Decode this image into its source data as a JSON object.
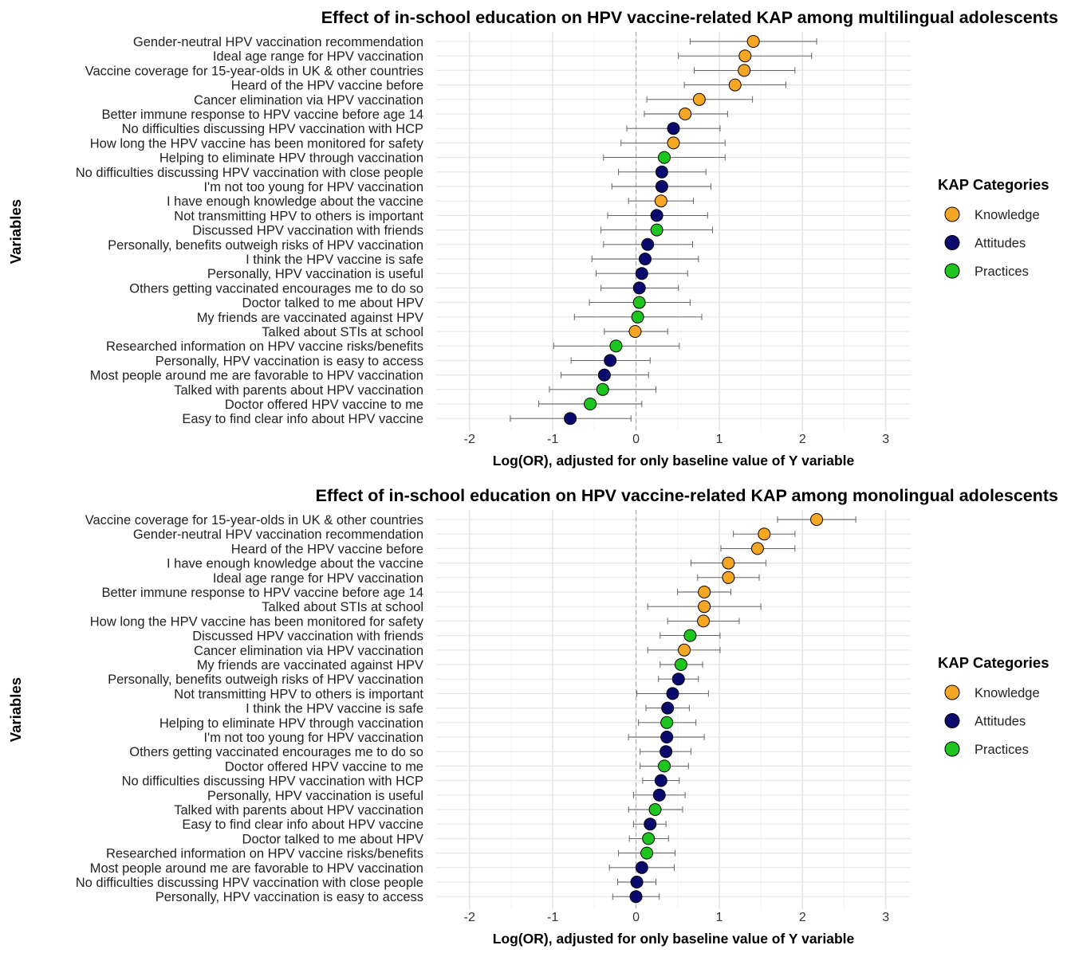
{
  "legend": {
    "title": "KAP Categories",
    "items": [
      {
        "label": "Knowledge",
        "color": "#F5A623"
      },
      {
        "label": "Attitudes",
        "color": "#0A0A6E"
      },
      {
        "label": "Practices",
        "color": "#1EC51E"
      }
    ]
  },
  "chart_data": [
    {
      "type": "scatter",
      "title": "Effect of in-school education on HPV vaccine-related KAP among multilingual adolescents",
      "xlabel": "Log(OR), adjusted for only baseline value of Y variable",
      "ylabel": "Variables",
      "xlim": [
        -2.4,
        3.3
      ],
      "xticks": [
        "-2",
        "-1",
        "0",
        "1",
        "2",
        "3"
      ],
      "reference_line": 0,
      "grid": true,
      "legend_position": "right",
      "points": [
        {
          "label": "Gender-neutral HPV vaccination recommendation",
          "category": "Knowledge",
          "estimate": 1.41,
          "low": 0.65,
          "high": 2.17
        },
        {
          "label": "Ideal age range for HPV vaccination",
          "category": "Knowledge",
          "estimate": 1.31,
          "low": 0.51,
          "high": 2.11
        },
        {
          "label": "Vaccine coverage for 15-year-olds in UK & other countries",
          "category": "Knowledge",
          "estimate": 1.3,
          "low": 0.7,
          "high": 1.91
        },
        {
          "label": "Heard of the HPV vaccine before",
          "category": "Knowledge",
          "estimate": 1.19,
          "low": 0.58,
          "high": 1.8
        },
        {
          "label": "Cancer elimination via HPV vaccination",
          "category": "Knowledge",
          "estimate": 0.76,
          "low": 0.13,
          "high": 1.4
        },
        {
          "label": "Better immune response to HPV vaccine before age 14",
          "category": "Knowledge",
          "estimate": 0.59,
          "low": 0.1,
          "high": 1.1
        },
        {
          "label": "No difficulties discussing HPV vaccination with HCP",
          "category": "Attitudes",
          "estimate": 0.45,
          "low": -0.11,
          "high": 1.01
        },
        {
          "label": "How long the HPV vaccine has been monitored for safety",
          "category": "Knowledge",
          "estimate": 0.45,
          "low": -0.18,
          "high": 1.07
        },
        {
          "label": "Helping to eliminate HPV through vaccination",
          "category": "Practices",
          "estimate": 0.34,
          "low": -0.39,
          "high": 1.07
        },
        {
          "label": "No difficulties discussing HPV vaccination with close people",
          "category": "Attitudes",
          "estimate": 0.31,
          "low": -0.21,
          "high": 0.84
        },
        {
          "label": "I'm not too young for HPV vaccination",
          "category": "Attitudes",
          "estimate": 0.31,
          "low": -0.29,
          "high": 0.9
        },
        {
          "label": "I have enough knowledge about the vaccine",
          "category": "Knowledge",
          "estimate": 0.3,
          "low": -0.09,
          "high": 0.69
        },
        {
          "label": "Not transmitting HPV to others is important",
          "category": "Attitudes",
          "estimate": 0.25,
          "low": -0.34,
          "high": 0.86
        },
        {
          "label": "Discussed HPV vaccination with friends",
          "category": "Practices",
          "estimate": 0.25,
          "low": -0.42,
          "high": 0.92
        },
        {
          "label": "Personally, benefits outweigh risks of HPV vaccination",
          "category": "Attitudes",
          "estimate": 0.14,
          "low": -0.39,
          "high": 0.68
        },
        {
          "label": "I think the HPV vaccine is safe",
          "category": "Attitudes",
          "estimate": 0.11,
          "low": -0.53,
          "high": 0.75
        },
        {
          "label": "Personally, HPV vaccination is useful",
          "category": "Attitudes",
          "estimate": 0.07,
          "low": -0.48,
          "high": 0.62
        },
        {
          "label": "Others getting vaccinated encourages me to do so",
          "category": "Attitudes",
          "estimate": 0.04,
          "low": -0.42,
          "high": 0.51
        },
        {
          "label": "Doctor talked to me about HPV",
          "category": "Practices",
          "estimate": 0.04,
          "low": -0.56,
          "high": 0.65
        },
        {
          "label": "My friends are vaccinated against HPV",
          "category": "Practices",
          "estimate": 0.02,
          "low": -0.74,
          "high": 0.79
        },
        {
          "label": "Talked about STIs at school",
          "category": "Knowledge",
          "estimate": -0.01,
          "low": -0.38,
          "high": 0.38
        },
        {
          "label": "Researched information on HPV vaccine risks/benefits",
          "category": "Practices",
          "estimate": -0.24,
          "low": -0.99,
          "high": 0.52
        },
        {
          "label": "Personally, HPV vaccination is easy to access",
          "category": "Attitudes",
          "estimate": -0.31,
          "low": -0.78,
          "high": 0.17
        },
        {
          "label": "Most people around me are favorable to HPV vaccination",
          "category": "Attitudes",
          "estimate": -0.38,
          "low": -0.9,
          "high": 0.15
        },
        {
          "label": "Talked with parents about HPV vaccination",
          "category": "Practices",
          "estimate": -0.4,
          "low": -1.04,
          "high": 0.24
        },
        {
          "label": "Doctor offered HPV vaccine to me",
          "category": "Practices",
          "estimate": -0.55,
          "low": -1.17,
          "high": 0.07
        },
        {
          "label": "Easy to find clear info about HPV vaccine",
          "category": "Attitudes",
          "estimate": -0.79,
          "low": -1.51,
          "high": -0.06
        }
      ]
    },
    {
      "type": "scatter",
      "title": "Effect of in-school education on HPV vaccine-related KAP among monolingual adolescents",
      "xlabel": "Log(OR), adjusted for only baseline value of Y variable",
      "ylabel": "Variables",
      "xlim": [
        -2.4,
        3.3
      ],
      "xticks": [
        "-2",
        "-1",
        "0",
        "1",
        "2",
        "3"
      ],
      "reference_line": 0,
      "grid": true,
      "legend_position": "right",
      "points": [
        {
          "label": "Vaccine coverage for 15-year-olds in UK & other countries",
          "category": "Knowledge",
          "estimate": 2.17,
          "low": 1.7,
          "high": 2.64
        },
        {
          "label": "Gender-neutral HPV vaccination recommendation",
          "category": "Knowledge",
          "estimate": 1.54,
          "low": 1.17,
          "high": 1.91
        },
        {
          "label": "Heard of the HPV vaccine before",
          "category": "Knowledge",
          "estimate": 1.46,
          "low": 1.02,
          "high": 1.91
        },
        {
          "label": "I have enough knowledge about the vaccine",
          "category": "Knowledge",
          "estimate": 1.11,
          "low": 0.66,
          "high": 1.56
        },
        {
          "label": "Ideal age range for HPV vaccination",
          "category": "Knowledge",
          "estimate": 1.11,
          "low": 0.74,
          "high": 1.48
        },
        {
          "label": "Better immune response to HPV vaccine before age 14",
          "category": "Knowledge",
          "estimate": 0.82,
          "low": 0.5,
          "high": 1.14
        },
        {
          "label": "Talked about STIs at school",
          "category": "Knowledge",
          "estimate": 0.82,
          "low": 0.14,
          "high": 1.5
        },
        {
          "label": "How long the HPV vaccine has been monitored for safety",
          "category": "Knowledge",
          "estimate": 0.81,
          "low": 0.38,
          "high": 1.24
        },
        {
          "label": "Discussed HPV vaccination with friends",
          "category": "Practices",
          "estimate": 0.65,
          "low": 0.29,
          "high": 1.01
        },
        {
          "label": "Cancer elimination via HPV vaccination",
          "category": "Knowledge",
          "estimate": 0.58,
          "low": 0.14,
          "high": 1.01
        },
        {
          "label": "My friends are vaccinated against HPV",
          "category": "Practices",
          "estimate": 0.54,
          "low": 0.29,
          "high": 0.8
        },
        {
          "label": "Personally, benefits outweigh risks of HPV vaccination",
          "category": "Attitudes",
          "estimate": 0.51,
          "low": 0.27,
          "high": 0.75
        },
        {
          "label": "Not transmitting HPV to others is important",
          "category": "Attitudes",
          "estimate": 0.44,
          "low": 0.01,
          "high": 0.87
        },
        {
          "label": "I think the HPV vaccine is safe",
          "category": "Attitudes",
          "estimate": 0.38,
          "low": 0.12,
          "high": 0.64
        },
        {
          "label": "Helping to eliminate HPV through vaccination",
          "category": "Practices",
          "estimate": 0.37,
          "low": 0.03,
          "high": 0.72
        },
        {
          "label": "I'm not too young for HPV vaccination",
          "category": "Attitudes",
          "estimate": 0.37,
          "low": -0.09,
          "high": 0.82
        },
        {
          "label": "Others getting vaccinated encourages me to do so",
          "category": "Attitudes",
          "estimate": 0.36,
          "low": 0.05,
          "high": 0.66
        },
        {
          "label": "Doctor offered HPV vaccine to me",
          "category": "Practices",
          "estimate": 0.34,
          "low": 0.05,
          "high": 0.63
        },
        {
          "label": "No difficulties discussing HPV vaccination with HCP",
          "category": "Attitudes",
          "estimate": 0.3,
          "low": 0.08,
          "high": 0.52
        },
        {
          "label": "Personally, HPV vaccination is useful",
          "category": "Attitudes",
          "estimate": 0.28,
          "low": -0.03,
          "high": 0.59
        },
        {
          "label": "Talked with parents about HPV vaccination",
          "category": "Practices",
          "estimate": 0.23,
          "low": -0.09,
          "high": 0.56
        },
        {
          "label": "Easy to find clear info about HPV vaccine",
          "category": "Attitudes",
          "estimate": 0.17,
          "low": -0.03,
          "high": 0.36
        },
        {
          "label": "Doctor talked to me about HPV",
          "category": "Practices",
          "estimate": 0.15,
          "low": -0.08,
          "high": 0.39
        },
        {
          "label": "Researched information on HPV vaccine risks/benefits",
          "category": "Practices",
          "estimate": 0.13,
          "low": -0.21,
          "high": 0.47
        },
        {
          "label": "Most people around me are favorable to HPV vaccination",
          "category": "Attitudes",
          "estimate": 0.07,
          "low": -0.32,
          "high": 0.46
        },
        {
          "label": "No difficulties discussing HPV vaccination with close people",
          "category": "Attitudes",
          "estimate": 0.01,
          "low": -0.22,
          "high": 0.24
        },
        {
          "label": "Personally, HPV vaccination is easy to access",
          "category": "Attitudes",
          "estimate": 0.0,
          "low": -0.28,
          "high": 0.28
        }
      ]
    }
  ]
}
